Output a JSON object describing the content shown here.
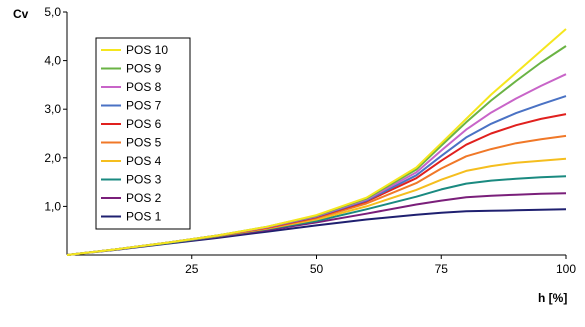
{
  "chart_data": {
    "type": "line",
    "title": "",
    "xlabel": "h [%]",
    "ylabel": "Cv",
    "xlim": [
      0,
      100
    ],
    "ylim": [
      0,
      5
    ],
    "x_ticks": [
      25,
      50,
      75,
      100
    ],
    "x_tick_labels": [
      "25",
      "50",
      "75",
      "100"
    ],
    "y_ticks": [
      1,
      2,
      3,
      4,
      5
    ],
    "y_tick_labels": [
      "1,0",
      "2,0",
      "3,0",
      "4,0",
      "5,0"
    ],
    "grid": false,
    "legend_position": "top-left",
    "x": [
      0,
      10,
      20,
      30,
      40,
      50,
      60,
      70,
      75,
      80,
      85,
      90,
      95,
      100
    ],
    "series": [
      {
        "name": "POS 10",
        "color": "#f5e61e",
        "values": [
          0.0,
          0.12,
          0.25,
          0.4,
          0.58,
          0.82,
          1.18,
          1.8,
          2.3,
          2.8,
          3.3,
          3.75,
          4.2,
          4.65
        ]
      },
      {
        "name": "POS 9",
        "color": "#6ab344",
        "values": [
          0.0,
          0.12,
          0.25,
          0.4,
          0.58,
          0.81,
          1.16,
          1.76,
          2.25,
          2.73,
          3.18,
          3.58,
          3.96,
          4.3
        ]
      },
      {
        "name": "POS 8",
        "color": "#c864c8",
        "values": [
          0.0,
          0.12,
          0.25,
          0.4,
          0.57,
          0.8,
          1.14,
          1.7,
          2.15,
          2.58,
          2.93,
          3.22,
          3.48,
          3.72
        ]
      },
      {
        "name": "POS 7",
        "color": "#4a72c4",
        "values": [
          0.0,
          0.12,
          0.25,
          0.4,
          0.57,
          0.79,
          1.12,
          1.64,
          2.04,
          2.42,
          2.7,
          2.92,
          3.1,
          3.27
        ]
      },
      {
        "name": "POS 6",
        "color": "#e0201e",
        "values": [
          0.0,
          0.12,
          0.25,
          0.4,
          0.56,
          0.78,
          1.1,
          1.58,
          1.94,
          2.27,
          2.5,
          2.67,
          2.8,
          2.9
        ]
      },
      {
        "name": "POS 5",
        "color": "#f07828",
        "values": [
          0.0,
          0.12,
          0.25,
          0.39,
          0.55,
          0.76,
          1.06,
          1.48,
          1.78,
          2.03,
          2.18,
          2.3,
          2.38,
          2.45
        ]
      },
      {
        "name": "POS 4",
        "color": "#f5be1e",
        "values": [
          0.0,
          0.12,
          0.25,
          0.39,
          0.54,
          0.73,
          1.0,
          1.34,
          1.55,
          1.73,
          1.83,
          1.9,
          1.94,
          1.98
        ]
      },
      {
        "name": "POS 3",
        "color": "#1a8a80",
        "values": [
          0.0,
          0.12,
          0.24,
          0.38,
          0.53,
          0.7,
          0.94,
          1.2,
          1.35,
          1.47,
          1.53,
          1.57,
          1.6,
          1.62
        ]
      },
      {
        "name": "POS 2",
        "color": "#7a1f7a",
        "values": [
          0.0,
          0.12,
          0.24,
          0.37,
          0.51,
          0.67,
          0.85,
          1.04,
          1.12,
          1.19,
          1.22,
          1.24,
          1.26,
          1.27
        ]
      },
      {
        "name": "POS 1",
        "color": "#1f2070",
        "values": [
          0.0,
          0.11,
          0.23,
          0.35,
          0.48,
          0.61,
          0.73,
          0.83,
          0.87,
          0.9,
          0.91,
          0.92,
          0.93,
          0.94
        ]
      }
    ]
  }
}
